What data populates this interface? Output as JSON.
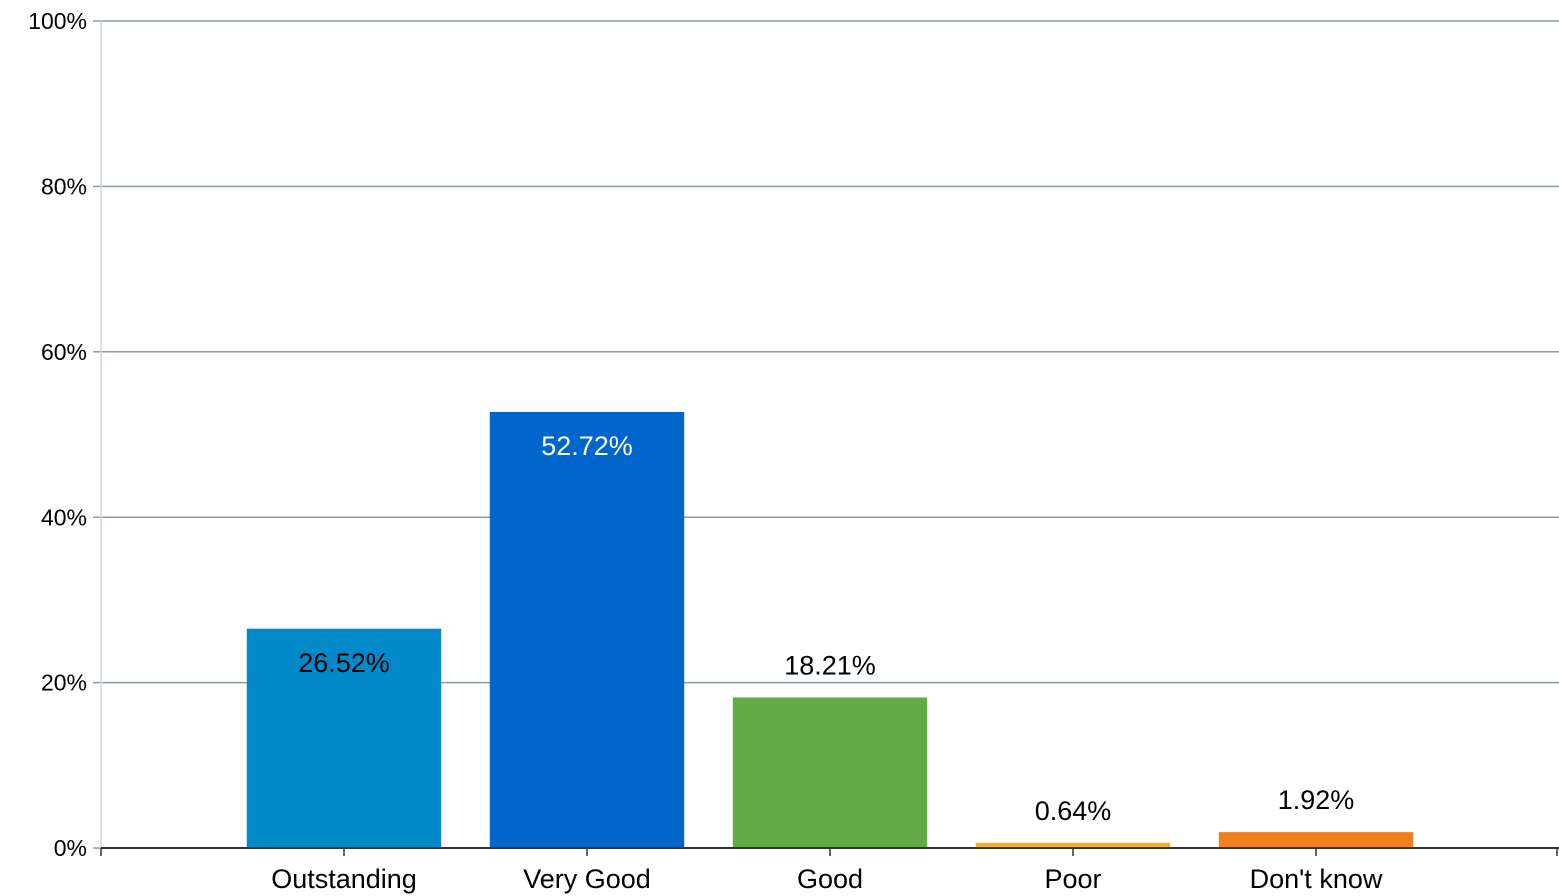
{
  "chart_data": {
    "type": "bar",
    "categories": [
      "Outstanding",
      "Very Good",
      "Good",
      "Poor",
      "Don't know"
    ],
    "values": [
      26.52,
      52.72,
      18.21,
      0.64,
      1.92
    ],
    "value_labels": [
      "26.52%",
      "52.72%",
      "18.21%",
      "0.64%",
      "1.92%"
    ],
    "colors": [
      "#0088c9",
      "#0066cc",
      "#63ab45",
      "#f0b224",
      "#f07f1e"
    ],
    "label_colors": [
      "#000000",
      "#ffffff",
      "#000000",
      "#000000",
      "#000000"
    ],
    "ylim": [
      0,
      100
    ],
    "yticks": [
      {
        "value": 0,
        "label": "0%"
      },
      {
        "value": 20,
        "label": "20%"
      },
      {
        "value": 40,
        "label": "40%"
      },
      {
        "value": 60,
        "label": "60%"
      },
      {
        "value": 80,
        "label": "80%"
      },
      {
        "value": 100,
        "label": "100%"
      }
    ],
    "grid": true
  }
}
